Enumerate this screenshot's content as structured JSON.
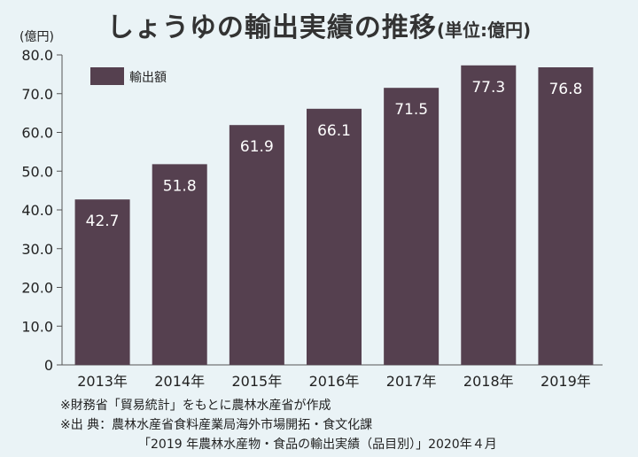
{
  "title": {
    "main": "しょうゆの輸出実績の推移",
    "sub": "(単位:億円)"
  },
  "colors": {
    "bar": "#55404f",
    "bar_label": "#ffffff",
    "background": "#eaf3f6",
    "axis": "#555555"
  },
  "chart_data": {
    "type": "bar",
    "categories": [
      "2013年",
      "2014年",
      "2015年",
      "2016年",
      "2017年",
      "2018年",
      "2019年"
    ],
    "series": [
      {
        "name": "輸出額",
        "values": [
          42.7,
          51.8,
          61.9,
          66.1,
          71.5,
          77.3,
          76.8
        ]
      }
    ],
    "data_labels": [
      "42.7",
      "51.8",
      "61.9",
      "66.1",
      "71.5",
      "77.3",
      "76.8"
    ],
    "y_ticks": [
      "0",
      "10.0",
      "20.0",
      "30.0",
      "40.0",
      "50.0",
      "60.0",
      "70.0",
      "80.0"
    ],
    "y_unit_label": "(億円)",
    "ylim": [
      0,
      80
    ],
    "grid": false,
    "legend_position": "top-left"
  },
  "notes": {
    "line1": "※財務省「貿易統計」をもとに農林水産省が作成",
    "line2": "※出 典：農林水産省食料産業局海外市場開拓・食文化課",
    "line3": "「2019 年農林水産物・食品の輸出実績（品目別）」2020年４月"
  }
}
